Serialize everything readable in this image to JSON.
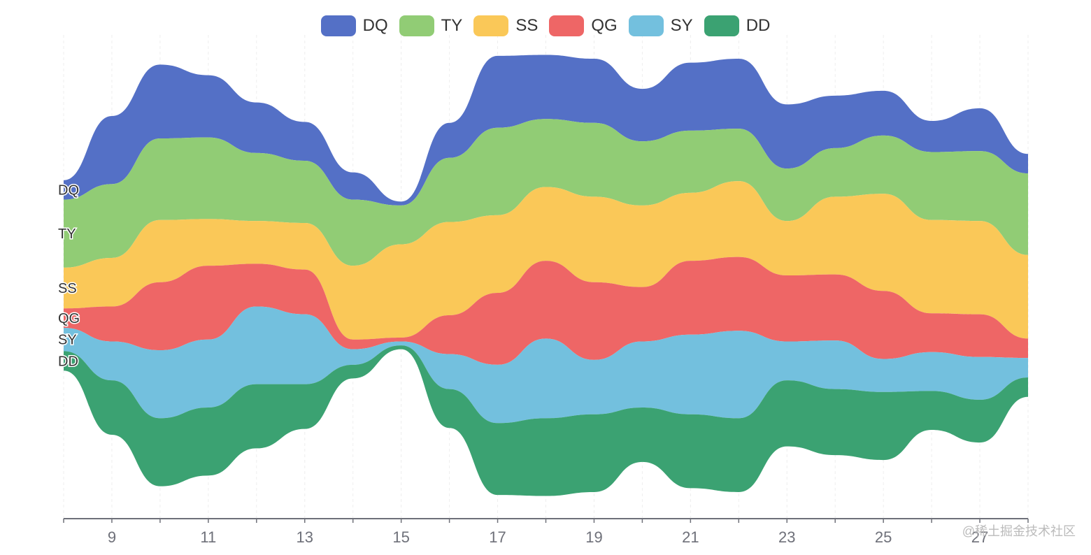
{
  "chart_data": {
    "type": "themeRiver",
    "x": [
      8,
      9,
      10,
      11,
      12,
      13,
      14,
      15,
      16,
      17,
      18,
      19,
      20,
      21,
      22,
      23,
      24,
      25,
      26,
      27,
      28
    ],
    "x_ticks": [
      "9",
      "11",
      "13",
      "15",
      "17",
      "19",
      "21",
      "23",
      "25",
      "27"
    ],
    "series": [
      {
        "name": "DQ",
        "color": "#5470c6",
        "values": [
          10,
          35,
          38,
          32,
          26,
          20,
          14,
          2,
          18,
          37,
          33,
          33,
          27,
          35,
          36,
          33,
          27,
          23,
          16,
          22,
          10
        ]
      },
      {
        "name": "TY",
        "color": "#91cc75",
        "values": [
          35,
          38,
          42,
          42,
          35,
          32,
          34,
          20,
          33,
          45,
          35,
          38,
          33,
          32,
          27,
          27,
          25,
          30,
          35,
          36,
          42
        ]
      },
      {
        "name": "SS",
        "color": "#fac858",
        "values": [
          21,
          25,
          32,
          24,
          22,
          24,
          38,
          48,
          48,
          40,
          38,
          44,
          42,
          35,
          39,
          28,
          40,
          50,
          48,
          48,
          43
        ]
      },
      {
        "name": "QG",
        "color": "#ee6666",
        "values": [
          10,
          18,
          35,
          38,
          22,
          23,
          5,
          2,
          20,
          37,
          40,
          40,
          28,
          38,
          38,
          34,
          34,
          35,
          20,
          22,
          10
        ]
      },
      {
        "name": "SY",
        "color": "#73c0de",
        "values": [
          12,
          20,
          35,
          35,
          40,
          36,
          8,
          2,
          18,
          30,
          41,
          28,
          34,
          41,
          45,
          20,
          25,
          17,
          20,
          22,
          10
        ]
      },
      {
        "name": "DD",
        "color": "#3ba272",
        "values": [
          10,
          28,
          35,
          35,
          33,
          23,
          7,
          2,
          20,
          37,
          40,
          40,
          28,
          38,
          38,
          34,
          34,
          35,
          20,
          22,
          10
        ]
      }
    ],
    "axis_color": "#6e7079",
    "grid": "vertical-dashed"
  },
  "watermark": "@稀土掘金技术社区"
}
